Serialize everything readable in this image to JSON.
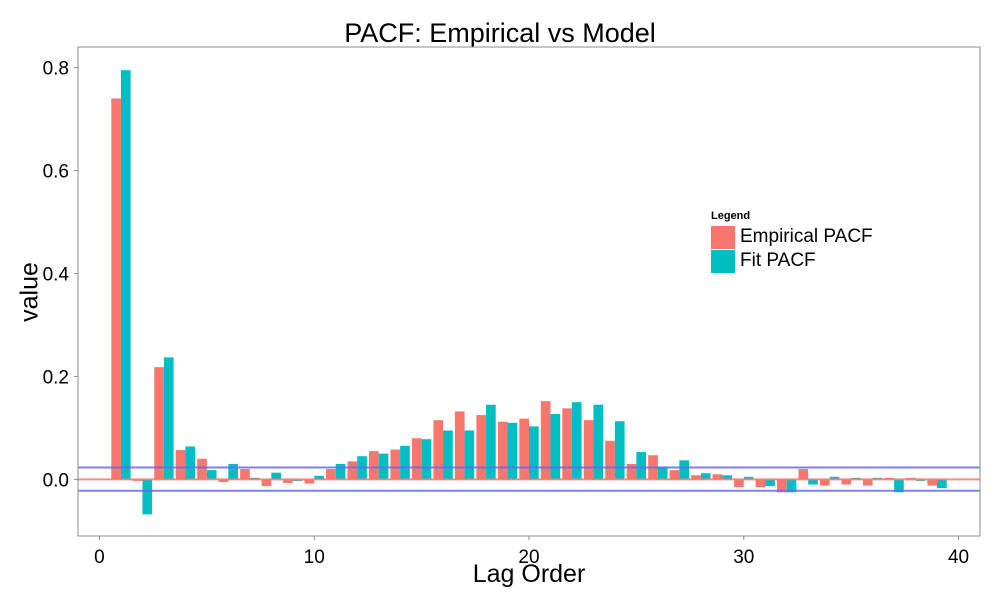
{
  "chart_data": {
    "type": "bar",
    "title": "PACF: Empirical vs Model",
    "xlabel": "Lag Order",
    "ylabel": "value",
    "xlim": [
      -1,
      41
    ],
    "ylim": [
      -0.11,
      0.84
    ],
    "x_ticks": [
      0,
      10,
      20,
      30,
      40
    ],
    "x_tick_labels": [
      "0",
      "10",
      "20",
      "30",
      "40"
    ],
    "y_ticks": [
      0.0,
      0.2,
      0.4,
      0.6,
      0.8
    ],
    "y_tick_labels": [
      "0.0",
      "0.2",
      "0.4",
      "0.6",
      "0.8"
    ],
    "grid": false,
    "legend": {
      "title": "Legend",
      "position": "right"
    },
    "categories": [
      1,
      2,
      3,
      4,
      5,
      6,
      7,
      8,
      9,
      10,
      11,
      12,
      13,
      14,
      15,
      16,
      17,
      18,
      19,
      20,
      21,
      22,
      23,
      24,
      25,
      26,
      27,
      28,
      29,
      30,
      31,
      32,
      33,
      34,
      35,
      36,
      37,
      38,
      39
    ],
    "series": [
      {
        "name": "Empirical PACF",
        "color": "#F8766D",
        "values": [
          0.74,
          -0.003,
          0.218,
          0.057,
          0.04,
          -0.005,
          0.02,
          -0.013,
          -0.007,
          -0.008,
          0.02,
          0.035,
          0.055,
          0.058,
          0.08,
          0.115,
          0.132,
          0.125,
          0.112,
          0.118,
          0.152,
          0.138,
          0.115,
          0.075,
          0.03,
          0.047,
          0.018,
          0.008,
          0.01,
          -0.015,
          -0.015,
          -0.025,
          0.02,
          -0.012,
          -0.01,
          -0.012,
          0.003,
          0.003,
          -0.012
        ]
      },
      {
        "name": "Fit PACF",
        "color": "#00BFC4",
        "values": [
          0.795,
          -0.068,
          0.237,
          0.064,
          0.018,
          0.03,
          0.003,
          0.013,
          -0.003,
          0.007,
          0.03,
          0.045,
          0.05,
          0.065,
          0.078,
          0.095,
          0.095,
          0.145,
          0.11,
          0.103,
          0.127,
          0.15,
          0.145,
          0.113,
          0.053,
          0.025,
          0.037,
          0.012,
          0.008,
          0.005,
          -0.013,
          -0.025,
          -0.01,
          0.005,
          0.003,
          0.003,
          -0.025,
          -0.003,
          -0.017
        ]
      }
    ],
    "reference_lines": [
      {
        "y": 0.0,
        "color": "#F8766D"
      },
      {
        "y": 0.023,
        "color": "#6A6AE8"
      },
      {
        "y": -0.022,
        "color": "#6A6AE8"
      }
    ]
  }
}
